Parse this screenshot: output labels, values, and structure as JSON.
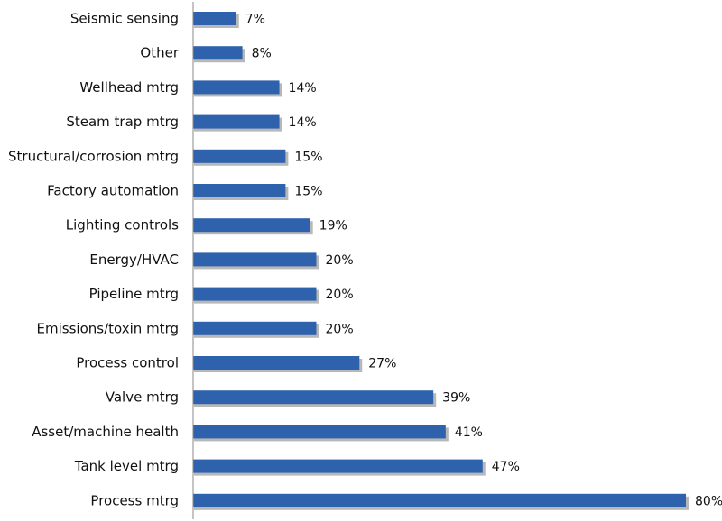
{
  "chart_data": {
    "type": "bar",
    "orientation": "horizontal",
    "categories": [
      "Seismic sensing",
      "Other",
      "Wellhead mtrg",
      "Steam trap mtrg",
      "Structural/corrosion  mtrg",
      "Factory automation",
      "Lighting controls",
      "Energy/HVAC",
      "Pipeline mtrg",
      "Emissions/toxin mtrg",
      "Process control",
      "Valve mtrg",
      "Asset/machine health",
      "Tank level mtrg",
      "Process mtrg"
    ],
    "values": [
      7,
      8,
      14,
      14,
      15,
      15,
      19,
      20,
      20,
      20,
      27,
      39,
      41,
      47,
      80
    ],
    "value_labels": [
      "7%",
      "8%",
      "14%",
      "14%",
      "15%",
      "15%",
      "19%",
      "20%",
      "20%",
      "20%",
      "27%",
      "39%",
      "41%",
      "47%",
      "80%"
    ],
    "unit": "%",
    "xlim": [
      0,
      80
    ],
    "grid": false,
    "legend": "none",
    "bar_color": "#2f62ad",
    "bar_shadow_color": "#b8b8b8",
    "axis_color": "#888888"
  }
}
